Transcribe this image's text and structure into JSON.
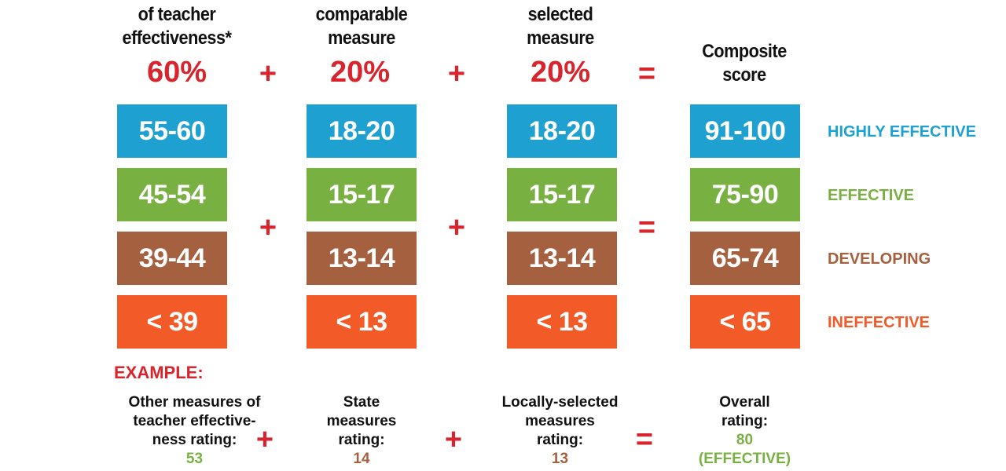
{
  "colors": {
    "highly_effective": "#1ea1d1",
    "effective": "#78b042",
    "developing": "#a4603f",
    "ineffective": "#f25a27",
    "accent": "#d7242d"
  },
  "headers": {
    "col1": [
      "of teacher",
      "effectiveness*"
    ],
    "col2": [
      "comparable",
      "measure"
    ],
    "col3": [
      "selected",
      "measure"
    ],
    "col4": [
      "Composite",
      "score"
    ]
  },
  "percentages": {
    "col1": "60%",
    "col2": "20%",
    "col3": "20%"
  },
  "operators": {
    "plus": "+",
    "equals": "="
  },
  "columns": {
    "col1": [
      "55-60",
      "45-54",
      "39-44",
      "< 39"
    ],
    "col2": [
      "18-20",
      "15-17",
      "13-14",
      "< 13"
    ],
    "col3": [
      "18-20",
      "15-17",
      "13-14",
      "< 13"
    ],
    "col4": [
      "91-100",
      "75-90",
      "65-74",
      "< 65"
    ]
  },
  "ratings": [
    "HIGHLY EFFECTIVE",
    "EFFECTIVE",
    "DEVELOPING",
    "INEFFECTIVE"
  ],
  "example": {
    "title": "EXAMPLE:",
    "col1": {
      "lines": [
        "Other measures of",
        "teacher effective-",
        "ness rating:"
      ],
      "value": "53"
    },
    "col2": {
      "lines": [
        "State",
        "measures",
        "rating:"
      ],
      "value": "14"
    },
    "col3": {
      "lines": [
        "Locally-selected",
        "measures",
        "rating:"
      ],
      "value": "13"
    },
    "col4": {
      "lines": [
        "Overall",
        "rating:"
      ],
      "value": "80",
      "value2": "(EFFECTIVE)"
    }
  }
}
